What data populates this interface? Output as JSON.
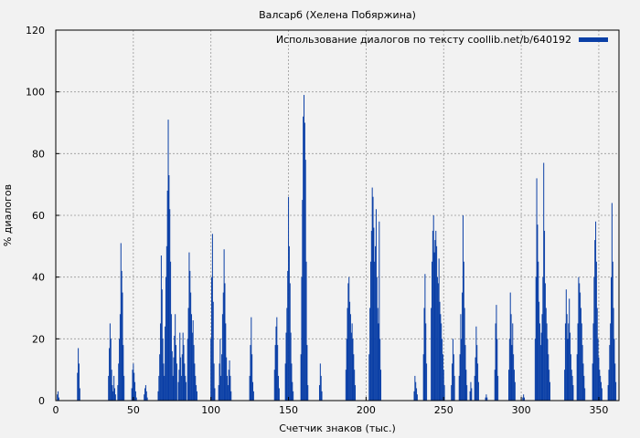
{
  "chart_data": {
    "type": "bar",
    "title": "Валсарб (Хелена Побяржина)",
    "xlabel": "Счетчик знаков (тыс.)",
    "ylabel": "% диалогов",
    "xlim": [
      0,
      363
    ],
    "ylim": [
      0,
      120
    ],
    "xticks": [
      0,
      50,
      100,
      150,
      200,
      250,
      300,
      350
    ],
    "yticks": [
      0,
      20,
      40,
      60,
      80,
      100,
      120
    ],
    "grid": true,
    "legend_position": "top-right",
    "bar_color": "#0a3fa6",
    "series": [
      {
        "name": "Использование диалогов по тексту coollib.net/b/640192",
        "points": [
          [
            1,
            2
          ],
          [
            1.5,
            3
          ],
          [
            2,
            1
          ],
          [
            14,
            9
          ],
          [
            14.5,
            17
          ],
          [
            15,
            12
          ],
          [
            15.5,
            4
          ],
          [
            34,
            8
          ],
          [
            34.5,
            17
          ],
          [
            35,
            25
          ],
          [
            35.5,
            20
          ],
          [
            36,
            10
          ],
          [
            36.5,
            5
          ],
          [
            37,
            3
          ],
          [
            37.5,
            8
          ],
          [
            38,
            4
          ],
          [
            38.5,
            2
          ],
          [
            40,
            5
          ],
          [
            40.5,
            12
          ],
          [
            41,
            20
          ],
          [
            41.5,
            28
          ],
          [
            42,
            51
          ],
          [
            42.5,
            42
          ],
          [
            43,
            35
          ],
          [
            43.5,
            18
          ],
          [
            44,
            8
          ],
          [
            49,
            4
          ],
          [
            49.5,
            10
          ],
          [
            50,
            12
          ],
          [
            50.5,
            9
          ],
          [
            51,
            6
          ],
          [
            51.5,
            3
          ],
          [
            52,
            1
          ],
          [
            57,
            2
          ],
          [
            57.5,
            4
          ],
          [
            58,
            5
          ],
          [
            58.5,
            3
          ],
          [
            59,
            1
          ],
          [
            66,
            3
          ],
          [
            66.5,
            8
          ],
          [
            67,
            15
          ],
          [
            67.5,
            25
          ],
          [
            68,
            47
          ],
          [
            68.5,
            36
          ],
          [
            69,
            20
          ],
          [
            69.5,
            12
          ],
          [
            70,
            8
          ],
          [
            70.5,
            24
          ],
          [
            71,
            40
          ],
          [
            71.5,
            50
          ],
          [
            72,
            68
          ],
          [
            72.5,
            91
          ],
          [
            73,
            73
          ],
          [
            73.5,
            62
          ],
          [
            74,
            45
          ],
          [
            74.5,
            28
          ],
          [
            75,
            16
          ],
          [
            75.5,
            8
          ],
          [
            76,
            14
          ],
          [
            76.5,
            21
          ],
          [
            77,
            28
          ],
          [
            77.5,
            18
          ],
          [
            78,
            12
          ],
          [
            79,
            6
          ],
          [
            79.5,
            10
          ],
          [
            80,
            22
          ],
          [
            80.5,
            14
          ],
          [
            81,
            8
          ],
          [
            81.5,
            15
          ],
          [
            82,
            22
          ],
          [
            82.5,
            18
          ],
          [
            83,
            12
          ],
          [
            83.5,
            8
          ],
          [
            84,
            6
          ],
          [
            85,
            20
          ],
          [
            85.5,
            30
          ],
          [
            86,
            48
          ],
          [
            86.5,
            42
          ],
          [
            87,
            35
          ],
          [
            87.5,
            28
          ],
          [
            88,
            22
          ],
          [
            88.5,
            26
          ],
          [
            89,
            18
          ],
          [
            89.5,
            12
          ],
          [
            90,
            8
          ],
          [
            90.5,
            5
          ],
          [
            91,
            3
          ],
          [
            100,
            20
          ],
          [
            100.5,
            40
          ],
          [
            101,
            54
          ],
          [
            101.5,
            32
          ],
          [
            102,
            12
          ],
          [
            102.5,
            4
          ],
          [
            105,
            5
          ],
          [
            105.5,
            12
          ],
          [
            106,
            20
          ],
          [
            106.5,
            8
          ],
          [
            107,
            15
          ],
          [
            107.5,
            28
          ],
          [
            108,
            35
          ],
          [
            108.5,
            49
          ],
          [
            109,
            38
          ],
          [
            109.5,
            25
          ],
          [
            110,
            14
          ],
          [
            110.5,
            8
          ],
          [
            111,
            5
          ],
          [
            111.5,
            10
          ],
          [
            112,
            13
          ],
          [
            112.5,
            8
          ],
          [
            113,
            3
          ],
          [
            125,
            8
          ],
          [
            125.5,
            18
          ],
          [
            126,
            27
          ],
          [
            126.5,
            15
          ],
          [
            127,
            6
          ],
          [
            127.5,
            3
          ],
          [
            141,
            10
          ],
          [
            141.5,
            18
          ],
          [
            142,
            24
          ],
          [
            142.5,
            27
          ],
          [
            143,
            18
          ],
          [
            143.5,
            8
          ],
          [
            144,
            4
          ],
          [
            148,
            12
          ],
          [
            148.5,
            22
          ],
          [
            149,
            30
          ],
          [
            149.5,
            42
          ],
          [
            150,
            66
          ],
          [
            150.5,
            50
          ],
          [
            151,
            38
          ],
          [
            151.5,
            22
          ],
          [
            152,
            12
          ],
          [
            152.5,
            6
          ],
          [
            153,
            3
          ],
          [
            158,
            15
          ],
          [
            158.5,
            40
          ],
          [
            159,
            65
          ],
          [
            159.5,
            92
          ],
          [
            160,
            99
          ],
          [
            160.5,
            90
          ],
          [
            161,
            78
          ],
          [
            161.5,
            45
          ],
          [
            162,
            18
          ],
          [
            162.5,
            5
          ],
          [
            170,
            5
          ],
          [
            170.5,
            12
          ],
          [
            171,
            8
          ],
          [
            171.5,
            3
          ],
          [
            187,
            10
          ],
          [
            187.5,
            20
          ],
          [
            188,
            30
          ],
          [
            188.5,
            38
          ],
          [
            189,
            40
          ],
          [
            189.5,
            32
          ],
          [
            190,
            28
          ],
          [
            190.5,
            22
          ],
          [
            191,
            25
          ],
          [
            191.5,
            20
          ],
          [
            192,
            15
          ],
          [
            192.5,
            10
          ],
          [
            193,
            5
          ],
          [
            202,
            15
          ],
          [
            202.5,
            30
          ],
          [
            203,
            45
          ],
          [
            203.5,
            55
          ],
          [
            204,
            69
          ],
          [
            204.5,
            66
          ],
          [
            205,
            56
          ],
          [
            205.5,
            45
          ],
          [
            206,
            50
          ],
          [
            206.5,
            62
          ],
          [
            207,
            40
          ],
          [
            207.5,
            30
          ],
          [
            208,
            25
          ],
          [
            208.5,
            58
          ],
          [
            209,
            20
          ],
          [
            209.5,
            10
          ],
          [
            231,
            3
          ],
          [
            231.5,
            8
          ],
          [
            232,
            6
          ],
          [
            232.5,
            4
          ],
          [
            233,
            2
          ],
          [
            237,
            15
          ],
          [
            237.5,
            30
          ],
          [
            238,
            41
          ],
          [
            238.5,
            25
          ],
          [
            239,
            12
          ],
          [
            242,
            30
          ],
          [
            242.5,
            45
          ],
          [
            243,
            55
          ],
          [
            243.5,
            60
          ],
          [
            244,
            48
          ],
          [
            244.5,
            52
          ],
          [
            245,
            55
          ],
          [
            245.5,
            50
          ],
          [
            246,
            40
          ],
          [
            246.5,
            38
          ],
          [
            247,
            46
          ],
          [
            247.5,
            32
          ],
          [
            248,
            28
          ],
          [
            248.5,
            25
          ],
          [
            249,
            20
          ],
          [
            249.5,
            15
          ],
          [
            250,
            10
          ],
          [
            250.5,
            5
          ],
          [
            255,
            5
          ],
          [
            255.5,
            12
          ],
          [
            256,
            20
          ],
          [
            256.5,
            15
          ],
          [
            257,
            8
          ],
          [
            260,
            8
          ],
          [
            260.5,
            15
          ],
          [
            261,
            28
          ],
          [
            261.5,
            20
          ],
          [
            262,
            35
          ],
          [
            262.5,
            60
          ],
          [
            263,
            45
          ],
          [
            263.5,
            30
          ],
          [
            264,
            18
          ],
          [
            264.5,
            10
          ],
          [
            265,
            5
          ],
          [
            267,
            3
          ],
          [
            267.5,
            6
          ],
          [
            268,
            4
          ],
          [
            270,
            8
          ],
          [
            270.5,
            14
          ],
          [
            271,
            24
          ],
          [
            271.5,
            18
          ],
          [
            272,
            12
          ],
          [
            272.5,
            6
          ],
          [
            277,
            1
          ],
          [
            277.5,
            2
          ],
          [
            278,
            1
          ],
          [
            283,
            10
          ],
          [
            283.5,
            25
          ],
          [
            284,
            31
          ],
          [
            284.5,
            20
          ],
          [
            285,
            8
          ],
          [
            292,
            10
          ],
          [
            292.5,
            20
          ],
          [
            293,
            35
          ],
          [
            293.5,
            28
          ],
          [
            294,
            18
          ],
          [
            294.5,
            25
          ],
          [
            295,
            15
          ],
          [
            295.5,
            10
          ],
          [
            296,
            6
          ],
          [
            301,
            1
          ],
          [
            301.5,
            2
          ],
          [
            302,
            1
          ],
          [
            309,
            20
          ],
          [
            309.5,
            40
          ],
          [
            310,
            72
          ],
          [
            310.5,
            57
          ],
          [
            311,
            45
          ],
          [
            311.5,
            32
          ],
          [
            312,
            25
          ],
          [
            312.5,
            18
          ],
          [
            313,
            22
          ],
          [
            313.5,
            28
          ],
          [
            314,
            40
          ],
          [
            314.5,
            77
          ],
          [
            315,
            55
          ],
          [
            315.5,
            38
          ],
          [
            316,
            30
          ],
          [
            316.5,
            25
          ],
          [
            317,
            20
          ],
          [
            317.5,
            15
          ],
          [
            318,
            10
          ],
          [
            318.5,
            6
          ],
          [
            328,
            10
          ],
          [
            328.5,
            25
          ],
          [
            329,
            36
          ],
          [
            329.5,
            28
          ],
          [
            330,
            20
          ],
          [
            330.5,
            25
          ],
          [
            331,
            33
          ],
          [
            331.5,
            22
          ],
          [
            332,
            15
          ],
          [
            332.5,
            10
          ],
          [
            333,
            8
          ],
          [
            333.5,
            5
          ],
          [
            336,
            15
          ],
          [
            336.5,
            25
          ],
          [
            337,
            40
          ],
          [
            337.5,
            38
          ],
          [
            338,
            35
          ],
          [
            338.5,
            30
          ],
          [
            339,
            25
          ],
          [
            339.5,
            18
          ],
          [
            340,
            12
          ],
          [
            340.5,
            8
          ],
          [
            341,
            4
          ],
          [
            346,
            12
          ],
          [
            346.5,
            25
          ],
          [
            347,
            40
          ],
          [
            347.5,
            52
          ],
          [
            348,
            58
          ],
          [
            348.5,
            45
          ],
          [
            349,
            30
          ],
          [
            349.5,
            20
          ],
          [
            350,
            14
          ],
          [
            350.5,
            10
          ],
          [
            351,
            8
          ],
          [
            351.5,
            6
          ],
          [
            352,
            4
          ],
          [
            356,
            5
          ],
          [
            356.5,
            10
          ],
          [
            357,
            18
          ],
          [
            357.5,
            25
          ],
          [
            358,
            40
          ],
          [
            358.5,
            64
          ],
          [
            359,
            45
          ],
          [
            359.5,
            30
          ],
          [
            360,
            20
          ],
          [
            360.5,
            12
          ],
          [
            361,
            6
          ]
        ]
      }
    ]
  }
}
